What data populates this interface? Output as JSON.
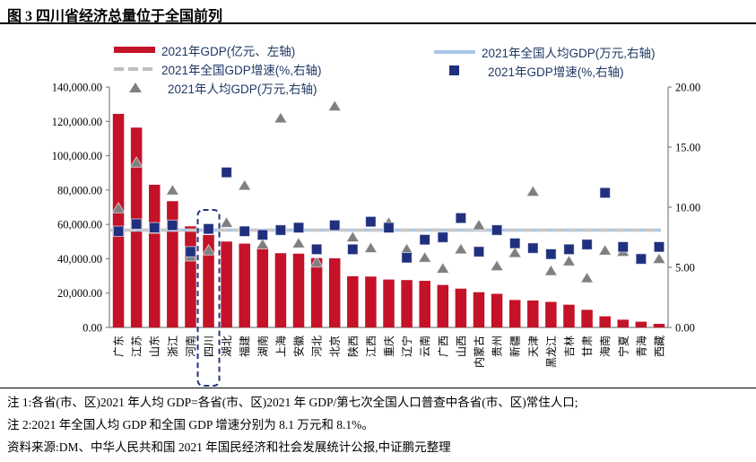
{
  "title": "图 3  四川省经济总量位于全国前列",
  "legend": {
    "gdp": "2021年GDP(亿元、左轴)",
    "national_growth": "2021年全国GDP增速(%,右轴)",
    "per_capita": "2021年人均GDP(万元,右轴)",
    "national_per_capita": "2021年全国人均GDP(万元,右轴)",
    "growth": "2021年GDP增速(%,右轴)"
  },
  "colors": {
    "bar_red": "#C41228",
    "sq_navy": "#20307F",
    "tri_gray": "#7F7F7F",
    "line_blue": "#A9C7E8",
    "dash_gray": "#BFBFBF",
    "axis_gray": "#808080",
    "highlight_navy": "#1F3280"
  },
  "chart_data": {
    "type": "bar",
    "subtype": "combo-bar-scatter-line",
    "categories": [
      "广东",
      "江苏",
      "山东",
      "浙江",
      "河南",
      "四川",
      "湖北",
      "福建",
      "湖南",
      "上海",
      "安徽",
      "河北",
      "北京",
      "陕西",
      "江西",
      "重庆",
      "辽宁",
      "云南",
      "广西",
      "山西",
      "内蒙古",
      "贵州",
      "新疆",
      "天津",
      "黑龙江",
      "吉林",
      "甘肃",
      "海南",
      "宁夏",
      "青海",
      "西藏"
    ],
    "series": [
      {
        "name": "2021年GDP(亿元、左轴)",
        "type": "bar",
        "axis": "left",
        "color": "#C41228",
        "values": [
          124369.7,
          116364.2,
          83095.9,
          73516.0,
          58887.4,
          53850.8,
          50012.9,
          48810.4,
          46063.1,
          43214.9,
          42959.2,
          40391.3,
          40269.6,
          29801.0,
          29619.7,
          27894.0,
          27584.1,
          27146.8,
          24740.9,
          22590.2,
          20514.2,
          19586.4,
          15983.7,
          15695.1,
          14879.2,
          13235.5,
          10243.3,
          6475.2,
          4522.3,
          3346.6,
          2080.2
        ]
      },
      {
        "name": "2021年人均GDP(万元,右轴)",
        "type": "scatter-triangle",
        "axis": "right",
        "color": "#7F7F7F",
        "values": [
          9.9,
          13.7,
          8.2,
          11.4,
          5.9,
          6.4,
          8.7,
          11.8,
          6.9,
          17.4,
          7.0,
          5.4,
          18.4,
          7.5,
          6.6,
          8.7,
          6.5,
          5.8,
          4.9,
          6.5,
          8.5,
          5.1,
          6.2,
          11.3,
          4.7,
          5.5,
          4.1,
          6.4,
          6.3,
          5.7,
          5.7
        ]
      },
      {
        "name": "2021年GDP增速(%,右轴)",
        "type": "scatter-square",
        "axis": "right",
        "color": "#20307F",
        "values": [
          8.0,
          8.6,
          8.3,
          8.5,
          6.3,
          8.2,
          12.9,
          8.0,
          7.7,
          8.1,
          8.3,
          6.5,
          8.5,
          6.5,
          8.8,
          8.3,
          5.8,
          7.3,
          7.5,
          9.1,
          6.3,
          8.1,
          7.0,
          6.6,
          6.1,
          6.5,
          6.9,
          11.2,
          6.7,
          5.7,
          6.7
        ]
      },
      {
        "name": "2021年全国人均GDP(万元,右轴)",
        "type": "line",
        "axis": "right",
        "color": "#A9C7E8",
        "value": 8.1
      },
      {
        "name": "2021年全国GDP增速(%,右轴)",
        "type": "dashed-line",
        "axis": "right",
        "color": "#C9C9C9",
        "value": 8.1
      }
    ],
    "left_axis": {
      "min": 0,
      "max": 140000,
      "ticks": [
        {
          "v": 0,
          "label": "0.00"
        },
        {
          "v": 20000,
          "label": "20,000.00"
        },
        {
          "v": 40000,
          "label": "40,000.00"
        },
        {
          "v": 60000,
          "label": "60,000.00"
        },
        {
          "v": 80000,
          "label": "80,000.00"
        },
        {
          "v": 100000,
          "label": "100,000.00"
        },
        {
          "v": 120000,
          "label": "120,000.00"
        },
        {
          "v": 140000,
          "label": "140,000.00"
        }
      ]
    },
    "right_axis": {
      "min": 0,
      "max": 20,
      "ticks": [
        {
          "v": 0,
          "label": "0.00"
        },
        {
          "v": 5,
          "label": "5.00"
        },
        {
          "v": 10,
          "label": "10.00"
        },
        {
          "v": 15,
          "label": "15.00"
        },
        {
          "v": 20,
          "label": "20.00"
        }
      ]
    },
    "highlight_category": "四川",
    "legend_position": "top",
    "grid": "off"
  },
  "notes": {
    "note1": "注 1:各省(市、区)2021 年人均 GDP=各省(市、区)2021 年 GDP/第七次全国人口普查中各省(市、区)常住人口;",
    "note2": "注 2:2021 年全国人均 GDP 和全国 GDP 增速分别为 8.1 万元和 8.1%。",
    "source": "资料来源:DM、中华人民共和国 2021 年国民经济和社会发展统计公报,中证鹏元整理"
  }
}
